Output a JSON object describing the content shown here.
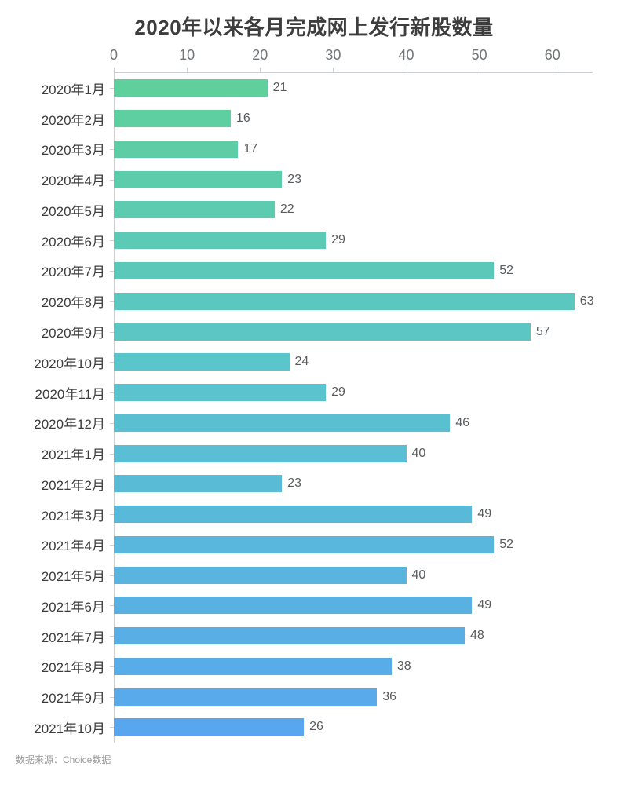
{
  "chart_data": {
    "type": "bar",
    "orientation": "horizontal",
    "title": "2020年以来各月完成网上发行新股数量",
    "categories": [
      "2020年1月",
      "2020年2月",
      "2020年3月",
      "2020年4月",
      "2020年5月",
      "2020年6月",
      "2020年7月",
      "2020年8月",
      "2020年9月",
      "2020年10月",
      "2020年11月",
      "2020年12月",
      "2021年1月",
      "2021年2月",
      "2021年3月",
      "2021年4月",
      "2021年5月",
      "2021年6月",
      "2021年7月",
      "2021年8月",
      "2021年9月",
      "2021年10月"
    ],
    "values": [
      21,
      16,
      17,
      23,
      22,
      29,
      52,
      63,
      57,
      24,
      29,
      46,
      40,
      23,
      49,
      52,
      40,
      49,
      48,
      38,
      36,
      26
    ],
    "xlabel": "",
    "ylabel": "",
    "xlim": [
      0,
      65.5
    ],
    "x_ticks": [
      0,
      10,
      20,
      30,
      40,
      50,
      60
    ],
    "grid": false,
    "legend": "none",
    "value_labels_shown": true,
    "bar_color_gradient": [
      "#5fd09b",
      "#5ac4cc",
      "#58a7ee"
    ],
    "axis_line_color": "#ccd0d4",
    "tick_label_color": "#737678",
    "category_label_color": "#3d3d3d",
    "value_label_color": "#595c5e",
    "title_color": "#3d3d3d"
  },
  "footer": {
    "source_text": "数据来源：Choice数据"
  }
}
